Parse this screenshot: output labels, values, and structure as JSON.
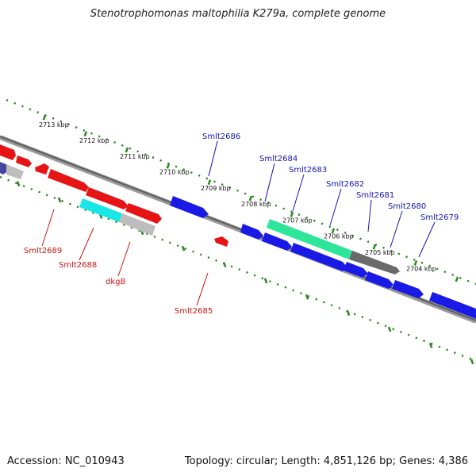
{
  "header": {
    "title": "Stenotrophomonas maltophilia K279a, complete genome"
  },
  "footer": {
    "accession": "Accession: NC_010943",
    "summary": "Topology: circular; Length: 4,851,126 bp; Genes: 4,386"
  },
  "colors": {
    "backbone": "#7a7a7a",
    "ruler": "#2e8b22",
    "forward_label": "#1414b4",
    "reverse_label": "#c81414",
    "gene_blue": "#1a1ae6",
    "gene_red": "#e61414",
    "gene_cyan": "#19e6e6",
    "gene_teal": "#2ee69a",
    "gene_gray": "#bdbdbd",
    "gene_dark": "#6a6a6a",
    "gene_purple": "#4646a0"
  },
  "scale": {
    "kbp_labels": [
      "2713 kbp",
      "2712 kbp",
      "2711 kbp",
      "2710 kbp",
      "2709 kbp",
      "2708 kbp",
      "2707 kbp",
      "2706 kbp",
      "2705 kbp",
      "2704 kbp"
    ]
  },
  "genes": {
    "forward": [
      {
        "label": "Smlt2686"
      },
      {
        "label": "Smlt2684"
      },
      {
        "label": "Smlt2683"
      },
      {
        "label": "Smlt2682"
      },
      {
        "label": "Smlt2681"
      },
      {
        "label": "Smlt2680"
      },
      {
        "label": "Smlt2679"
      }
    ],
    "reverse": [
      {
        "label": "Smlt2689"
      },
      {
        "label": "Smlt2688"
      },
      {
        "label": "dkgB"
      },
      {
        "label": "Smlt2685"
      }
    ]
  }
}
